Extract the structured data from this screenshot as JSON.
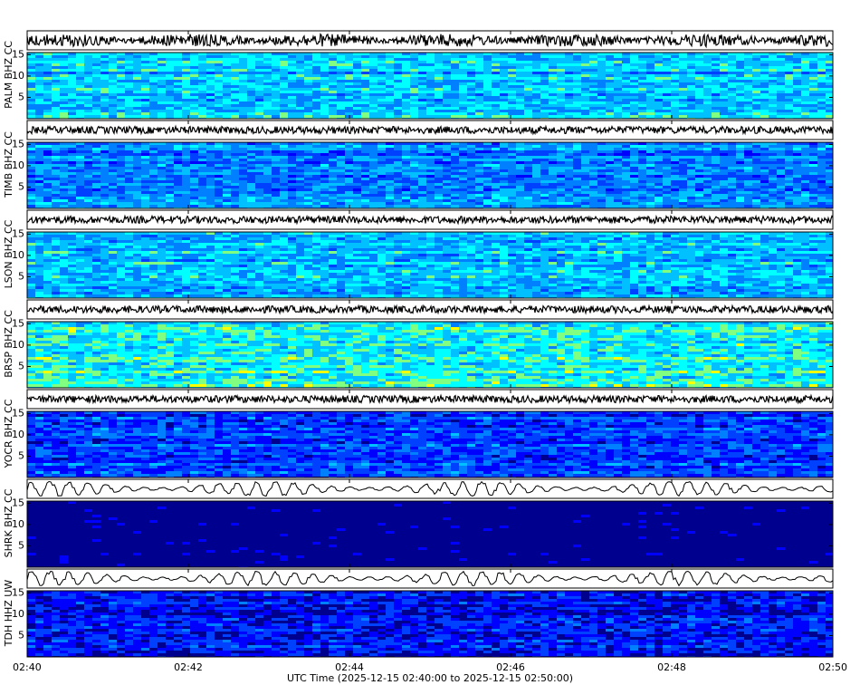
{
  "chart_data": {
    "type": "spectrogram",
    "xlabel": "UTC Time (2025-12-15 02:40:00 to 2025-12-15 02:50:00)",
    "xlim": [
      0,
      10
    ],
    "xticks": [
      {
        "value": 0,
        "label": "02:40"
      },
      {
        "value": 2,
        "label": "02:42"
      },
      {
        "value": 4,
        "label": "02:44"
      },
      {
        "value": 6,
        "label": "02:46"
      },
      {
        "value": 8,
        "label": "02:48"
      },
      {
        "value": 10,
        "label": "02:50"
      }
    ],
    "ylim": [
      0,
      15.5
    ],
    "yticks": [
      5,
      10,
      15
    ],
    "panels": [
      {
        "label": "PALM BHZ CC",
        "color": "#00c0ff"
      },
      {
        "label": "TIMB BHZ CC",
        "color": "#0080ff"
      },
      {
        "label": "LSON BHZ CC",
        "color": "#00c0ff"
      },
      {
        "label": "BRSP BHZ CC",
        "color": "#00ffff"
      },
      {
        "label": "YOCR BHZ CC",
        "color": "#0040ff"
      },
      {
        "label": "SHRK BHZ CC",
        "color": "#00008f"
      },
      {
        "label": "TDH HHZ UW",
        "color": "#0000ff"
      }
    ]
  }
}
